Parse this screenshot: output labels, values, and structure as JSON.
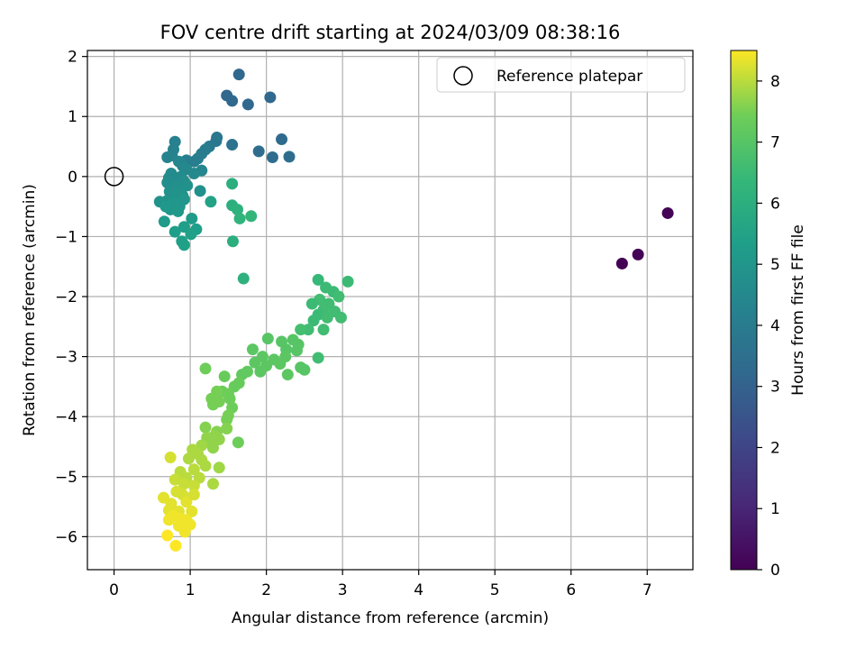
{
  "chart_data": {
    "type": "scatter",
    "title": "FOV centre drift starting at 2024/03/09 08:38:16",
    "xlabel": "Angular distance from reference (arcmin)",
    "ylabel": "Rotation from reference (arcmin)",
    "xlim": [
      -0.35,
      7.6
    ],
    "ylim": [
      -6.55,
      2.1
    ],
    "xticks": [
      0,
      1,
      2,
      3,
      4,
      5,
      6,
      7
    ],
    "yticks": [
      2,
      1,
      0,
      -1,
      -2,
      -3,
      -4,
      -5,
      -6
    ],
    "grid": true,
    "legend": {
      "placement": "top-right",
      "entries": [
        "Reference platepar"
      ]
    },
    "reference_point": {
      "x": 0,
      "y": 0
    },
    "colorbar": {
      "label": "Hours from first FF file",
      "range": [
        0,
        8.5
      ],
      "ticks": [
        0,
        1,
        2,
        3,
        4,
        5,
        6,
        7,
        8
      ],
      "colormap": "viridis"
    },
    "points": [
      {
        "x": 6.67,
        "y": -1.45,
        "c": 0.0
      },
      {
        "x": 6.88,
        "y": -1.3,
        "c": 0.05
      },
      {
        "x": 7.27,
        "y": -0.61,
        "c": 0.1
      },
      {
        "x": 1.64,
        "y": 1.7,
        "c": 3.2
      },
      {
        "x": 1.48,
        "y": 1.35,
        "c": 3.2
      },
      {
        "x": 2.05,
        "y": 1.32,
        "c": 3.2
      },
      {
        "x": 1.55,
        "y": 1.26,
        "c": 3.2
      },
      {
        "x": 1.76,
        "y": 1.2,
        "c": 3.2
      },
      {
        "x": 2.2,
        "y": 0.62,
        "c": 3.3
      },
      {
        "x": 1.9,
        "y": 0.42,
        "c": 3.4
      },
      {
        "x": 2.3,
        "y": 0.33,
        "c": 3.4
      },
      {
        "x": 2.08,
        "y": 0.32,
        "c": 3.4
      },
      {
        "x": 1.55,
        "y": 0.53,
        "c": 3.6
      },
      {
        "x": 1.35,
        "y": 0.65,
        "c": 3.8
      },
      {
        "x": 1.34,
        "y": 0.59,
        "c": 3.8
      },
      {
        "x": 1.25,
        "y": 0.5,
        "c": 3.9
      },
      {
        "x": 1.2,
        "y": 0.45,
        "c": 4.0
      },
      {
        "x": 1.15,
        "y": 0.38,
        "c": 4.0
      },
      {
        "x": 1.1,
        "y": 0.3,
        "c": 4.1
      },
      {
        "x": 1.05,
        "y": 0.25,
        "c": 4.1
      },
      {
        "x": 0.95,
        "y": 0.27,
        "c": 4.1
      },
      {
        "x": 0.8,
        "y": 0.58,
        "c": 4.2
      },
      {
        "x": 0.78,
        "y": 0.45,
        "c": 4.2
      },
      {
        "x": 0.76,
        "y": 0.35,
        "c": 4.3
      },
      {
        "x": 0.7,
        "y": 0.32,
        "c": 4.3
      },
      {
        "x": 0.85,
        "y": 0.25,
        "c": 4.4
      },
      {
        "x": 0.9,
        "y": 0.18,
        "c": 4.4
      },
      {
        "x": 1.15,
        "y": 0.1,
        "c": 4.4
      },
      {
        "x": 1.05,
        "y": 0.05,
        "c": 4.5
      },
      {
        "x": 0.95,
        "y": 0.12,
        "c": 4.5
      },
      {
        "x": 0.75,
        "y": 0.05,
        "c": 4.6
      },
      {
        "x": 0.72,
        "y": -0.02,
        "c": 4.6
      },
      {
        "x": 0.8,
        "y": -0.05,
        "c": 4.6
      },
      {
        "x": 0.88,
        "y": 0.0,
        "c": 4.6
      },
      {
        "x": 0.92,
        "y": -0.08,
        "c": 4.7
      },
      {
        "x": 0.7,
        "y": -0.1,
        "c": 4.7
      },
      {
        "x": 0.78,
        "y": -0.15,
        "c": 4.7
      },
      {
        "x": 0.85,
        "y": -0.18,
        "c": 4.8
      },
      {
        "x": 0.96,
        "y": -0.15,
        "c": 4.8
      },
      {
        "x": 1.13,
        "y": -0.24,
        "c": 4.8
      },
      {
        "x": 0.73,
        "y": -0.25,
        "c": 4.8
      },
      {
        "x": 0.82,
        "y": -0.3,
        "c": 4.9
      },
      {
        "x": 0.9,
        "y": -0.32,
        "c": 4.9
      },
      {
        "x": 0.6,
        "y": -0.42,
        "c": 4.9
      },
      {
        "x": 0.7,
        "y": -0.4,
        "c": 4.9
      },
      {
        "x": 0.78,
        "y": -0.45,
        "c": 5.0
      },
      {
        "x": 0.86,
        "y": -0.5,
        "c": 5.0
      },
      {
        "x": 0.92,
        "y": -0.38,
        "c": 5.0
      },
      {
        "x": 0.74,
        "y": -0.55,
        "c": 5.0
      },
      {
        "x": 0.84,
        "y": -0.58,
        "c": 5.1
      },
      {
        "x": 0.68,
        "y": -0.5,
        "c": 5.1
      },
      {
        "x": 1.27,
        "y": -0.42,
        "c": 5.5
      },
      {
        "x": 1.55,
        "y": -0.12,
        "c": 6.0
      },
      {
        "x": 0.66,
        "y": -0.75,
        "c": 5.2
      },
      {
        "x": 1.02,
        "y": -0.7,
        "c": 5.2
      },
      {
        "x": 0.92,
        "y": -0.84,
        "c": 5.3
      },
      {
        "x": 0.8,
        "y": -0.92,
        "c": 5.3
      },
      {
        "x": 1.08,
        "y": -0.88,
        "c": 5.3
      },
      {
        "x": 1.01,
        "y": -0.96,
        "c": 5.4
      },
      {
        "x": 0.89,
        "y": -1.08,
        "c": 5.4
      },
      {
        "x": 0.92,
        "y": -1.14,
        "c": 5.4
      },
      {
        "x": 1.55,
        "y": -0.48,
        "c": 6.0
      },
      {
        "x": 1.62,
        "y": -0.55,
        "c": 6.1
      },
      {
        "x": 1.65,
        "y": -0.7,
        "c": 6.2
      },
      {
        "x": 1.8,
        "y": -0.66,
        "c": 6.3
      },
      {
        "x": 1.56,
        "y": -1.08,
        "c": 6.0
      },
      {
        "x": 1.7,
        "y": -1.7,
        "c": 6.1
      },
      {
        "x": 2.68,
        "y": -1.72,
        "c": 6.4
      },
      {
        "x": 3.07,
        "y": -1.75,
        "c": 6.5
      },
      {
        "x": 2.78,
        "y": -1.85,
        "c": 6.5
      },
      {
        "x": 2.88,
        "y": -1.92,
        "c": 6.5
      },
      {
        "x": 2.95,
        "y": -2.0,
        "c": 6.6
      },
      {
        "x": 2.7,
        "y": -2.05,
        "c": 6.6
      },
      {
        "x": 2.82,
        "y": -2.12,
        "c": 6.6
      },
      {
        "x": 2.6,
        "y": -2.12,
        "c": 6.5
      },
      {
        "x": 2.75,
        "y": -2.22,
        "c": 6.6
      },
      {
        "x": 2.9,
        "y": -2.25,
        "c": 6.6
      },
      {
        "x": 2.68,
        "y": -2.3,
        "c": 6.5
      },
      {
        "x": 2.8,
        "y": -2.35,
        "c": 6.6
      },
      {
        "x": 2.98,
        "y": -2.35,
        "c": 6.6
      },
      {
        "x": 2.62,
        "y": -2.4,
        "c": 6.5
      },
      {
        "x": 2.75,
        "y": -2.55,
        "c": 6.6
      },
      {
        "x": 2.55,
        "y": -2.55,
        "c": 6.6
      },
      {
        "x": 2.45,
        "y": -2.55,
        "c": 6.7
      },
      {
        "x": 2.68,
        "y": -3.02,
        "c": 6.6
      },
      {
        "x": 2.2,
        "y": -2.75,
        "c": 7.0
      },
      {
        "x": 2.35,
        "y": -2.72,
        "c": 7.0
      },
      {
        "x": 2.42,
        "y": -2.8,
        "c": 7.0
      },
      {
        "x": 2.26,
        "y": -2.88,
        "c": 7.0
      },
      {
        "x": 2.4,
        "y": -2.9,
        "c": 7.0
      },
      {
        "x": 2.02,
        "y": -2.7,
        "c": 7.0
      },
      {
        "x": 1.82,
        "y": -2.88,
        "c": 7.1
      },
      {
        "x": 1.95,
        "y": -3.0,
        "c": 7.1
      },
      {
        "x": 2.1,
        "y": -3.05,
        "c": 7.1
      },
      {
        "x": 2.25,
        "y": -3.0,
        "c": 7.1
      },
      {
        "x": 1.85,
        "y": -3.1,
        "c": 7.1
      },
      {
        "x": 2.0,
        "y": -3.15,
        "c": 7.1
      },
      {
        "x": 2.18,
        "y": -3.12,
        "c": 7.1
      },
      {
        "x": 1.92,
        "y": -3.25,
        "c": 7.1
      },
      {
        "x": 1.75,
        "y": -3.25,
        "c": 7.2
      },
      {
        "x": 2.28,
        "y": -3.3,
        "c": 7.1
      },
      {
        "x": 2.45,
        "y": -3.18,
        "c": 7.0
      },
      {
        "x": 2.5,
        "y": -3.22,
        "c": 7.0
      },
      {
        "x": 1.68,
        "y": -3.3,
        "c": 7.2
      },
      {
        "x": 1.64,
        "y": -3.44,
        "c": 7.3
      },
      {
        "x": 1.2,
        "y": -3.2,
        "c": 7.4
      },
      {
        "x": 1.45,
        "y": -3.33,
        "c": 7.3
      },
      {
        "x": 1.58,
        "y": -3.5,
        "c": 7.3
      },
      {
        "x": 1.5,
        "y": -3.62,
        "c": 7.4
      },
      {
        "x": 1.42,
        "y": -3.58,
        "c": 7.4
      },
      {
        "x": 1.35,
        "y": -3.58,
        "c": 7.5
      },
      {
        "x": 1.28,
        "y": -3.7,
        "c": 7.5
      },
      {
        "x": 1.38,
        "y": -3.75,
        "c": 7.5
      },
      {
        "x": 1.52,
        "y": -3.7,
        "c": 7.4
      },
      {
        "x": 1.3,
        "y": -3.8,
        "c": 7.5
      },
      {
        "x": 1.55,
        "y": -3.85,
        "c": 7.4
      },
      {
        "x": 1.5,
        "y": -3.98,
        "c": 7.5
      },
      {
        "x": 1.48,
        "y": -4.05,
        "c": 7.5
      },
      {
        "x": 1.48,
        "y": -4.2,
        "c": 7.6
      },
      {
        "x": 1.35,
        "y": -4.25,
        "c": 7.6
      },
      {
        "x": 1.2,
        "y": -4.18,
        "c": 7.6
      },
      {
        "x": 1.32,
        "y": -4.32,
        "c": 7.7
      },
      {
        "x": 1.22,
        "y": -4.35,
        "c": 7.7
      },
      {
        "x": 1.38,
        "y": -4.38,
        "c": 7.7
      },
      {
        "x": 1.28,
        "y": -4.46,
        "c": 7.7
      },
      {
        "x": 1.3,
        "y": -4.52,
        "c": 7.7
      },
      {
        "x": 1.63,
        "y": -4.43,
        "c": 7.4
      },
      {
        "x": 1.15,
        "y": -4.48,
        "c": 7.8
      },
      {
        "x": 1.03,
        "y": -4.55,
        "c": 7.9
      },
      {
        "x": 1.1,
        "y": -4.62,
        "c": 7.9
      },
      {
        "x": 1.15,
        "y": -4.72,
        "c": 7.9
      },
      {
        "x": 0.98,
        "y": -4.7,
        "c": 7.9
      },
      {
        "x": 1.2,
        "y": -4.82,
        "c": 7.9
      },
      {
        "x": 1.38,
        "y": -4.85,
        "c": 7.8
      },
      {
        "x": 1.05,
        "y": -4.88,
        "c": 8.0
      },
      {
        "x": 0.87,
        "y": -4.92,
        "c": 8.0
      },
      {
        "x": 0.95,
        "y": -5.02,
        "c": 8.0
      },
      {
        "x": 1.12,
        "y": -5.02,
        "c": 8.0
      },
      {
        "x": 1.3,
        "y": -5.12,
        "c": 7.9
      },
      {
        "x": 0.8,
        "y": -5.05,
        "c": 8.1
      },
      {
        "x": 0.92,
        "y": -5.12,
        "c": 8.1
      },
      {
        "x": 1.05,
        "y": -5.15,
        "c": 8.1
      },
      {
        "x": 0.74,
        "y": -4.68,
        "c": 8.2
      },
      {
        "x": 0.82,
        "y": -5.25,
        "c": 8.2
      },
      {
        "x": 0.9,
        "y": -5.3,
        "c": 8.2
      },
      {
        "x": 0.65,
        "y": -5.35,
        "c": 8.3
      },
      {
        "x": 0.95,
        "y": -5.42,
        "c": 8.3
      },
      {
        "x": 1.05,
        "y": -5.3,
        "c": 8.2
      },
      {
        "x": 0.75,
        "y": -5.45,
        "c": 8.3
      },
      {
        "x": 0.72,
        "y": -5.56,
        "c": 8.3
      },
      {
        "x": 0.85,
        "y": -5.58,
        "c": 8.3
      },
      {
        "x": 1.02,
        "y": -5.58,
        "c": 8.3
      },
      {
        "x": 0.78,
        "y": -5.65,
        "c": 8.4
      },
      {
        "x": 0.88,
        "y": -5.7,
        "c": 8.4
      },
      {
        "x": 0.95,
        "y": -5.72,
        "c": 8.4
      },
      {
        "x": 0.72,
        "y": -5.72,
        "c": 8.4
      },
      {
        "x": 1.0,
        "y": -5.8,
        "c": 8.4
      },
      {
        "x": 0.85,
        "y": -5.82,
        "c": 8.4
      },
      {
        "x": 0.93,
        "y": -5.92,
        "c": 8.4
      },
      {
        "x": 0.7,
        "y": -5.98,
        "c": 8.5
      },
      {
        "x": 0.81,
        "y": -6.15,
        "c": 8.5
      }
    ]
  }
}
